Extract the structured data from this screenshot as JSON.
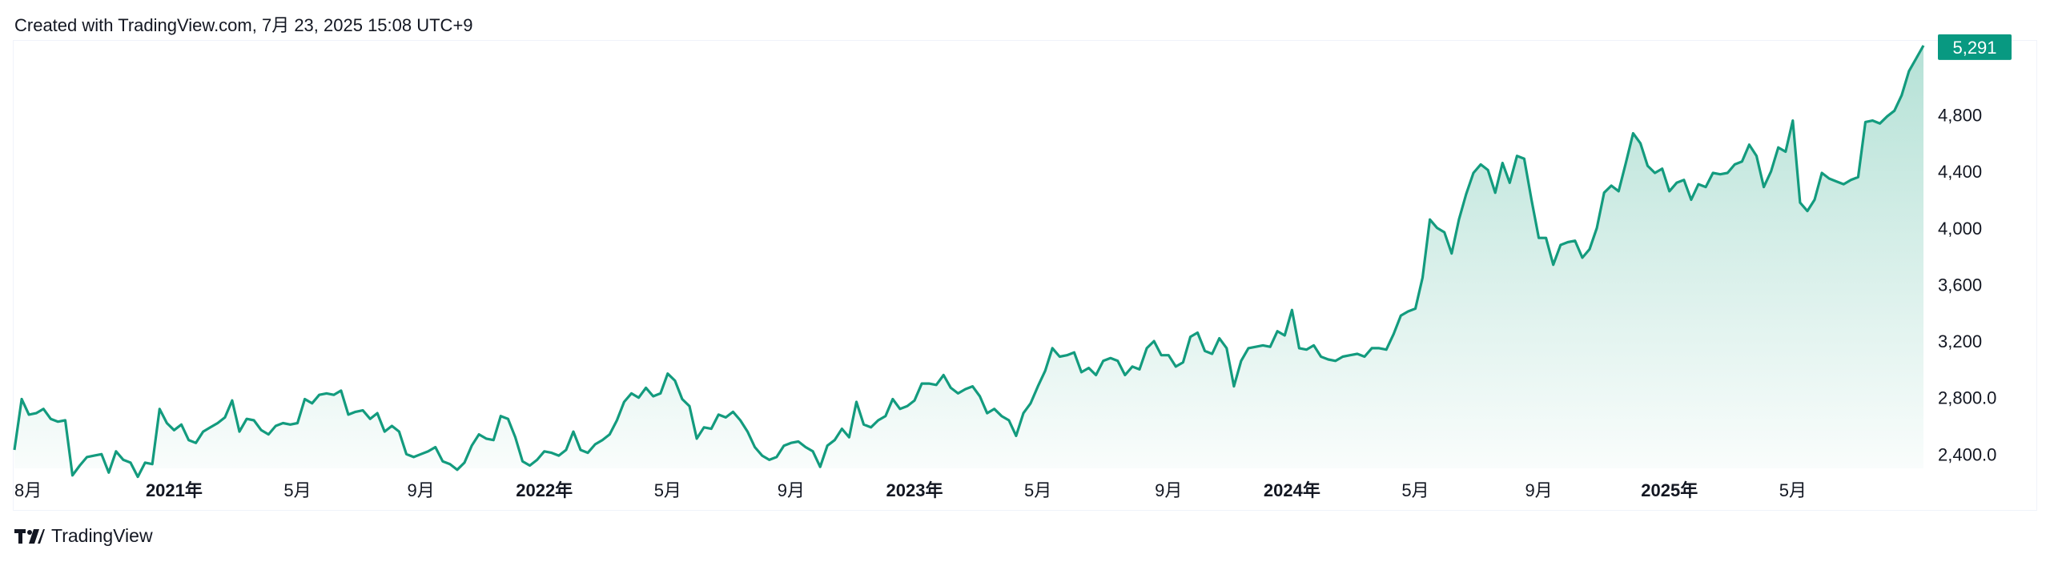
{
  "header": {
    "caption": "Created with TradingView.com, 7月 23, 2025 15:08 UTC+9"
  },
  "footer": {
    "brand": "TradingView",
    "logo_icon": "tradingview-logo-icon"
  },
  "colors": {
    "line": "#139b7e",
    "fill_top": "#a8dccf",
    "price_badge_bg": "#089981",
    "axis_text": "#131722"
  },
  "chart_data": {
    "type": "area",
    "x_ticks": [
      {
        "label": "8月",
        "bold": false,
        "index": 0
      },
      {
        "label": "2021年",
        "bold": true,
        "index": 22
      },
      {
        "label": "5月",
        "bold": false,
        "index": 39
      },
      {
        "label": "9月",
        "bold": false,
        "index": 56
      },
      {
        "label": "2022年",
        "bold": true,
        "index": 73
      },
      {
        "label": "5月",
        "bold": false,
        "index": 90
      },
      {
        "label": "9月",
        "bold": false,
        "index": 107
      },
      {
        "label": "2023年",
        "bold": true,
        "index": 124
      },
      {
        "label": "5月",
        "bold": false,
        "index": 141
      },
      {
        "label": "9月",
        "bold": false,
        "index": 159
      },
      {
        "label": "2024年",
        "bold": true,
        "index": 176
      },
      {
        "label": "5月",
        "bold": false,
        "index": 193
      },
      {
        "label": "9月",
        "bold": false,
        "index": 210
      },
      {
        "label": "2025年",
        "bold": true,
        "index": 228
      },
      {
        "label": "5月",
        "bold": false,
        "index": 245
      }
    ],
    "y_ticks": [
      {
        "value": 2400,
        "label": "2,400.0"
      },
      {
        "value": 2800,
        "label": "2,800.0"
      },
      {
        "value": 3200,
        "label": "3,200"
      },
      {
        "value": 3600,
        "label": "3,600"
      },
      {
        "value": 4000,
        "label": "4,000"
      },
      {
        "value": 4400,
        "label": "4,400"
      },
      {
        "value": 4800,
        "label": "4,800"
      }
    ],
    "ylim": [
      2300,
      5330
    ],
    "last_price_label": "5,291",
    "values": [
      2430,
      2790,
      2680,
      2690,
      2720,
      2650,
      2630,
      2640,
      2250,
      2320,
      2380,
      2390,
      2400,
      2270,
      2420,
      2360,
      2340,
      2240,
      2340,
      2330,
      2720,
      2620,
      2570,
      2610,
      2500,
      2480,
      2560,
      2590,
      2620,
      2660,
      2780,
      2560,
      2650,
      2640,
      2570,
      2540,
      2600,
      2620,
      2610,
      2620,
      2790,
      2760,
      2820,
      2830,
      2820,
      2850,
      2680,
      2700,
      2710,
      2650,
      2690,
      2560,
      2600,
      2560,
      2400,
      2380,
      2400,
      2420,
      2450,
      2350,
      2330,
      2290,
      2340,
      2460,
      2540,
      2510,
      2500,
      2670,
      2650,
      2520,
      2350,
      2320,
      2360,
      2420,
      2410,
      2390,
      2430,
      2560,
      2430,
      2410,
      2470,
      2500,
      2540,
      2640,
      2770,
      2830,
      2800,
      2870,
      2810,
      2830,
      2970,
      2920,
      2790,
      2740,
      2510,
      2590,
      2580,
      2680,
      2660,
      2700,
      2640,
      2560,
      2450,
      2390,
      2360,
      2380,
      2460,
      2480,
      2490,
      2450,
      2420,
      2310,
      2460,
      2500,
      2580,
      2520,
      2770,
      2610,
      2590,
      2640,
      2670,
      2790,
      2720,
      2740,
      2780,
      2900,
      2900,
      2890,
      2960,
      2870,
      2830,
      2860,
      2880,
      2810,
      2690,
      2720,
      2670,
      2640,
      2530,
      2690,
      2760,
      2880,
      2990,
      3150,
      3090,
      3100,
      3120,
      2980,
      3010,
      2960,
      3060,
      3080,
      3060,
      2960,
      3020,
      3000,
      3150,
      3200,
      3100,
      3100,
      3020,
      3050,
      3230,
      3260,
      3130,
      3110,
      3220,
      3150,
      2880,
      3060,
      3150,
      3160,
      3170,
      3160,
      3270,
      3240,
      3420,
      3150,
      3140,
      3170,
      3090,
      3070,
      3060,
      3090,
      3100,
      3110,
      3090,
      3150,
      3150,
      3140,
      3250,
      3380,
      3410,
      3430,
      3650,
      4060,
      4000,
      3970,
      3820,
      4060,
      4240,
      4390,
      4450,
      4410,
      4250,
      4460,
      4320,
      4510,
      4490,
      4200,
      3930,
      3930,
      3740,
      3880,
      3900,
      3910,
      3790,
      3850,
      4000,
      4250,
      4300,
      4260,
      4460,
      4670,
      4600,
      4440,
      4390,
      4420,
      4260,
      4320,
      4340,
      4200,
      4310,
      4290,
      4390,
      4380,
      4390,
      4450,
      4470,
      4590,
      4510,
      4290,
      4400,
      4570,
      4540,
      4760,
      4180,
      4120,
      4200,
      4390,
      4350,
      4330,
      4310,
      4340,
      4360,
      4750,
      4760,
      4740,
      4790,
      4830,
      4940,
      5110,
      5200,
      5291
    ]
  }
}
